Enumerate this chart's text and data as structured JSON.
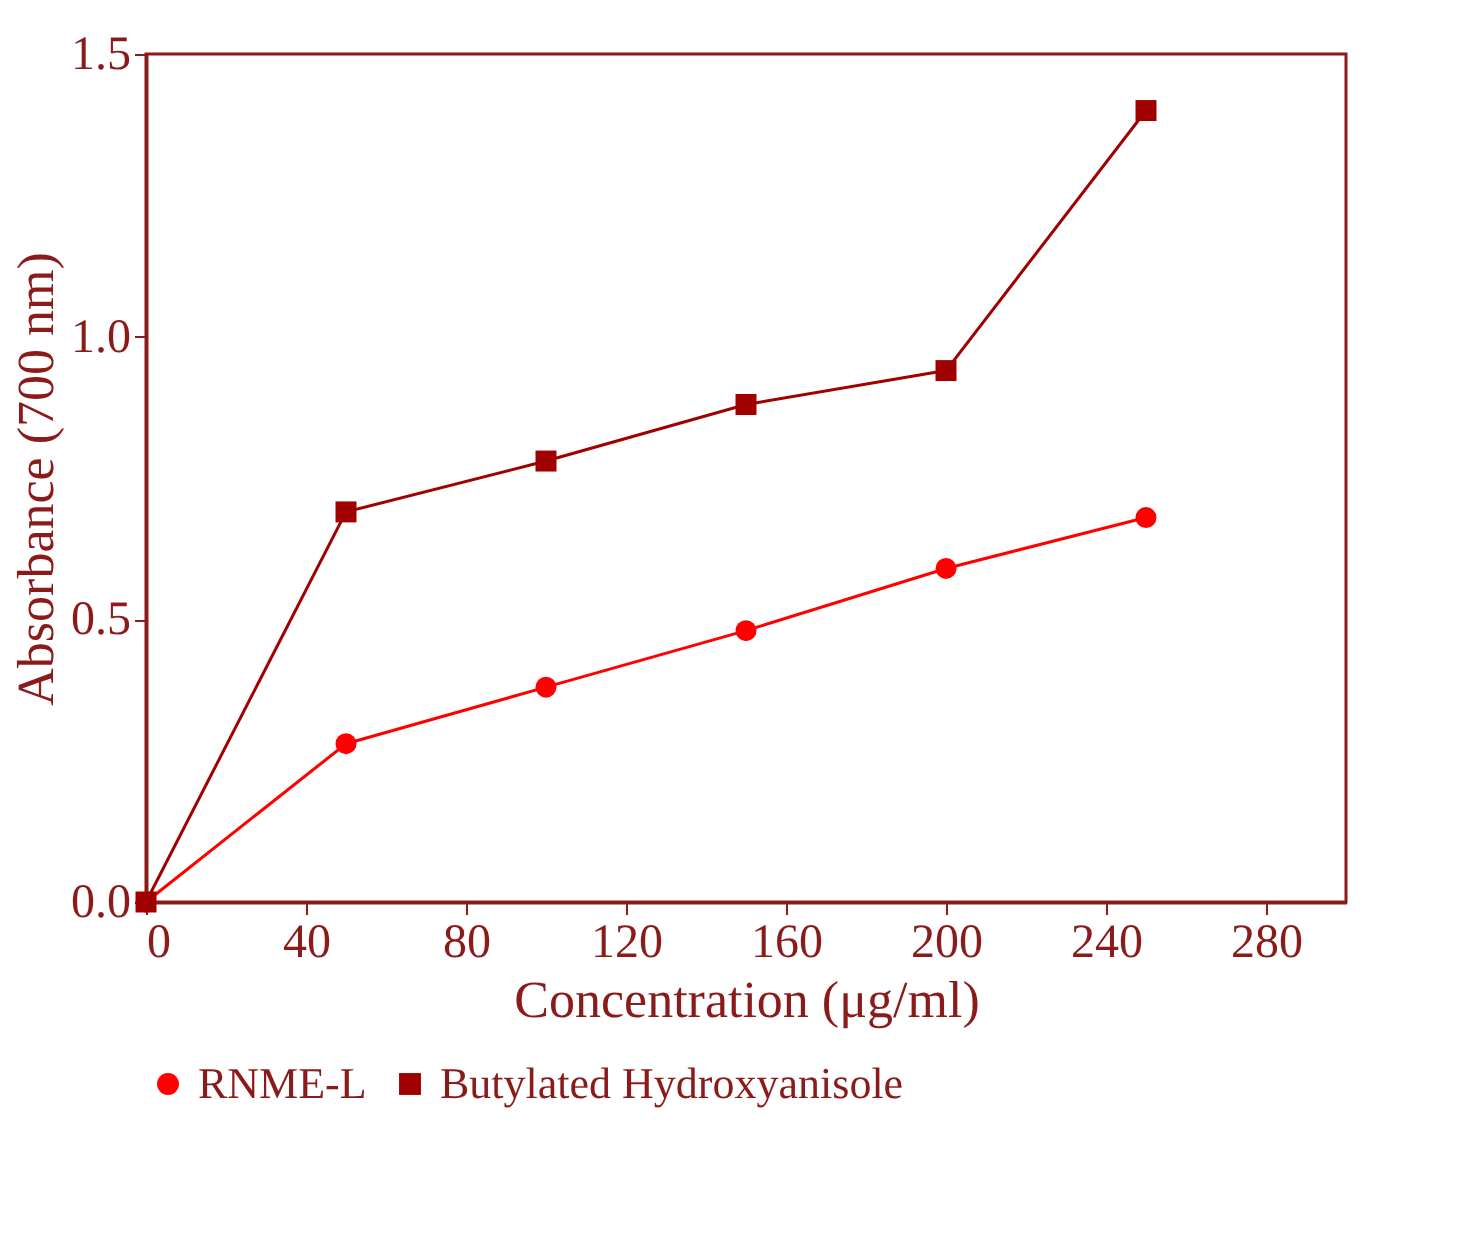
{
  "chart_data": {
    "type": "line",
    "xlabel": "Concentration (μg/ml)",
    "ylabel": "Absorbance (700 nm)",
    "x": [
      0,
      50,
      100,
      150,
      200,
      250
    ],
    "series": [
      {
        "name": "RNME-L",
        "color": "#ff0000",
        "marker": "circle",
        "values": [
          0,
          0.28,
          0.38,
          0.48,
          0.59,
          0.68
        ]
      },
      {
        "name": "Butylated Hydroxyanisole",
        "color": "#a00000",
        "marker": "square",
        "values": [
          0,
          0.69,
          0.78,
          0.88,
          0.94,
          1.4
        ]
      }
    ],
    "xlim": [
      0,
      300
    ],
    "xticks": [
      0,
      40,
      80,
      120,
      160,
      200,
      240,
      280
    ],
    "ylim": [
      0,
      1.5
    ],
    "yticks": [
      {
        "value": 0,
        "label": "0.0"
      },
      {
        "value": 0.5,
        "label": "0.5"
      },
      {
        "value": 1,
        "label": "1.0"
      },
      {
        "value": 1.5,
        "label": "1.5"
      }
    ],
    "grid": false,
    "legend": "bottom",
    "line_style": "solid"
  }
}
